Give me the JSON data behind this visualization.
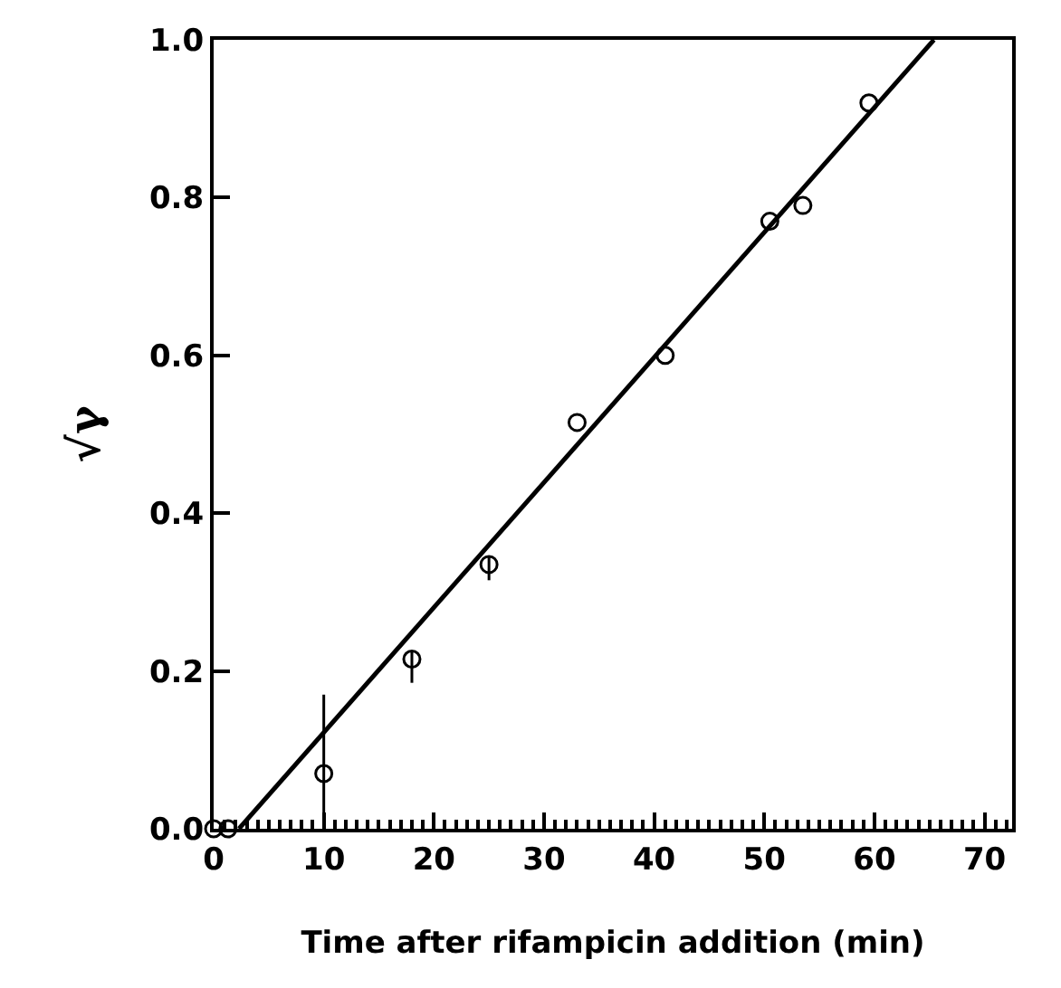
{
  "chart_data": {
    "type": "scatter",
    "xlabel": "Time after rifampicin addition (min)",
    "ylabel": "√γ",
    "x": [
      0,
      1.3,
      10,
      18,
      25,
      33,
      41,
      50.5,
      53.5,
      59.5
    ],
    "series": [
      {
        "color": "#000000",
        "marker": "circle",
        "values": [
          0,
          0,
          0.07,
          0.215,
          0.335,
          0.515,
          0.6,
          0.77,
          0.79,
          0.92
        ],
        "errors": [
          null,
          null,
          [
            0,
            0.17
          ],
          [
            0.185,
            0.225
          ],
          [
            0.315,
            0.345
          ],
          null,
          null,
          null,
          null,
          null
        ]
      },
      {
        "type": "line",
        "color": "#000000",
        "x": [
          2.3,
          65.4
        ],
        "values": [
          0,
          1
        ],
        "line_style": "solid"
      }
    ],
    "xlim": [
      0,
      72.5
    ],
    "xticks": [
      0,
      10,
      20,
      30,
      40,
      50,
      60,
      70
    ],
    "ylim": [
      0,
      1
    ],
    "yticks": [
      {
        "value": 0,
        "label": "0.0"
      },
      0.2,
      0.4,
      0.6,
      0.8,
      {
        "value": 1,
        "label": "1.0"
      }
    ],
    "grid": false
  }
}
